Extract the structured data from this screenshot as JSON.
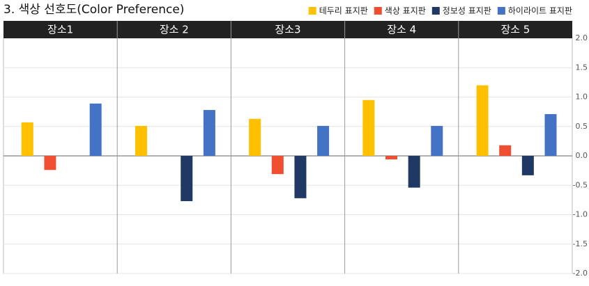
{
  "chart_data": {
    "type": "bar",
    "title": "3. 색상 선호도(Color Preference)",
    "categories": [
      "장소1",
      "장소 2",
      "장소3",
      "장소 4",
      "장소 5"
    ],
    "series": [
      {
        "name": "테두리 표지판",
        "color": "#FFC000",
        "values": [
          0.57,
          0.51,
          0.63,
          0.95,
          1.2
        ]
      },
      {
        "name": "색상 표지판",
        "color": "#F04E31",
        "values": [
          -0.24,
          null,
          -0.31,
          -0.06,
          0.18
        ]
      },
      {
        "name": "정보성 표지판",
        "color": "#1F3864",
        "values": [
          null,
          -0.77,
          -0.72,
          -0.54,
          -0.33
        ]
      },
      {
        "name": "하이라이트 표지판",
        "color": "#4472C4",
        "values": [
          0.89,
          0.78,
          0.51,
          0.51,
          0.71
        ]
      }
    ],
    "ylim": [
      -2,
      2
    ],
    "yticks": [
      {
        "value": 2,
        "label": "2.0"
      },
      1.5,
      {
        "value": 1,
        "label": "1.0"
      },
      0.5,
      {
        "value": 0,
        "label": "0.0"
      },
      -0.5,
      {
        "value": -1,
        "label": "-1.0"
      },
      -1.5,
      {
        "value": -2,
        "label": "-2.0"
      }
    ],
    "grid": true
  }
}
